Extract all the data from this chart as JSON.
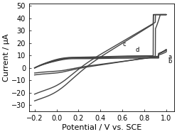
{
  "xlabel": "Potential / V vs. SCE",
  "ylabel": "Current / μA",
  "xlim": [
    -0.25,
    1.07
  ],
  "ylim": [
    -35,
    52
  ],
  "xticks": [
    -0.2,
    0.0,
    0.2,
    0.4,
    0.6,
    0.8,
    1.0
  ],
  "yticks": [
    -30,
    -20,
    -10,
    0,
    10,
    20,
    30,
    40,
    50
  ],
  "curve_color": "#444444",
  "label_a": "a",
  "label_b": "b",
  "label_c": "c",
  "label_d": "d",
  "background_color": "#ffffff",
  "tick_labelsize": 7,
  "axis_labelsize": 8
}
